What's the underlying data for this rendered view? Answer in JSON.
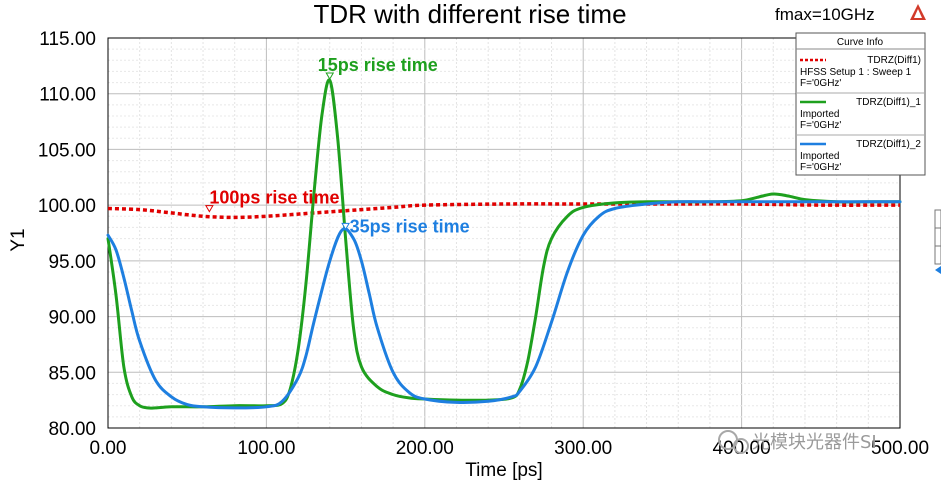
{
  "header": {
    "fmax_label": "fmax=10GHz"
  },
  "legend": {
    "title": "Curve Info",
    "entries": [
      {
        "name": "TDRZ(Diff1)",
        "lines": [
          "HFSS Setup 1 : Sweep 1",
          "F='0GHz'"
        ],
        "color": "#e00000",
        "dashed": true
      },
      {
        "name": "TDRZ(Diff1)_1",
        "lines": [
          "Imported",
          "F='0GHz'"
        ],
        "color": "#1ea01e",
        "dashed": false
      },
      {
        "name": "TDRZ(Diff1)_2",
        "lines": [
          "Imported",
          "F='0GHz'"
        ],
        "color": "#1e7fe0",
        "dashed": false
      }
    ]
  },
  "watermark": {
    "text": "光模块光器件SI"
  },
  "chart_data": {
    "type": "line",
    "title": "TDR  with different rise time",
    "xlabel": "Time [ps]",
    "ylabel": "Y1",
    "xlim": [
      0,
      500
    ],
    "ylim": [
      80,
      115
    ],
    "x_ticks": [
      0,
      100,
      200,
      300,
      400,
      500
    ],
    "x_tick_labels": [
      "0.00",
      "100.00",
      "200.00",
      "300.00",
      "400.00",
      "500.00"
    ],
    "y_ticks": [
      80,
      85,
      90,
      95,
      100,
      105,
      110,
      115
    ],
    "y_tick_labels": [
      "80.00",
      "85.00",
      "90.00",
      "95.00",
      "100.00",
      "105.00",
      "110.00",
      "115.00"
    ],
    "grid": true,
    "legend_position": "top-right",
    "series": [
      {
        "name": "TDRZ(Diff1)",
        "color": "#e00000",
        "dashed": true,
        "x": [
          0,
          20,
          40,
          60,
          80,
          100,
          120,
          140,
          160,
          180,
          200,
          250,
          300,
          350,
          400,
          450,
          500
        ],
        "y": [
          99.7,
          99.6,
          99.3,
          99.0,
          98.9,
          99.0,
          99.2,
          99.4,
          99.6,
          99.8,
          100.0,
          100.1,
          100.1,
          100.1,
          100.1,
          100.0,
          100.0
        ]
      },
      {
        "name": "TDRZ(Diff1)_1",
        "color": "#1ea01e",
        "dashed": false,
        "x": [
          0,
          5,
          10,
          15,
          20,
          25,
          30,
          40,
          60,
          80,
          100,
          110,
          115,
          120,
          125,
          130,
          135,
          140,
          145,
          150,
          155,
          160,
          170,
          180,
          190,
          200,
          220,
          240,
          255,
          260,
          265,
          270,
          275,
          280,
          290,
          300,
          320,
          340,
          360,
          380,
          400,
          410,
          420,
          430,
          440,
          460,
          480,
          500
        ],
        "y": [
          97.0,
          92.0,
          85.5,
          82.8,
          82.0,
          81.8,
          81.8,
          81.9,
          81.9,
          82.0,
          82.0,
          82.2,
          83.5,
          87.0,
          93.0,
          101.0,
          108.0,
          111.2,
          106.0,
          97.0,
          89.0,
          85.5,
          83.7,
          83.0,
          82.7,
          82.6,
          82.5,
          82.5,
          82.7,
          83.5,
          86.0,
          90.0,
          94.5,
          97.0,
          99.0,
          99.8,
          100.2,
          100.3,
          100.3,
          100.3,
          100.4,
          100.7,
          101.0,
          100.8,
          100.5,
          100.3,
          100.3,
          100.3
        ]
      },
      {
        "name": "TDRZ(Diff1)_2",
        "color": "#1e7fe0",
        "dashed": false,
        "x": [
          0,
          5,
          10,
          15,
          20,
          30,
          40,
          50,
          60,
          80,
          100,
          110,
          120,
          125,
          130,
          140,
          148,
          155,
          160,
          165,
          170,
          180,
          190,
          200,
          220,
          240,
          255,
          260,
          270,
          280,
          290,
          300,
          310,
          320,
          340,
          360,
          380,
          400,
          420,
          440,
          460,
          480,
          500
        ],
        "y": [
          97.3,
          96.0,
          93.5,
          90.5,
          87.8,
          84.3,
          82.8,
          82.1,
          81.9,
          81.8,
          81.9,
          82.4,
          84.5,
          86.5,
          89.5,
          95.0,
          97.8,
          97.0,
          95.0,
          92.0,
          89.0,
          85.0,
          83.2,
          82.6,
          82.3,
          82.4,
          82.8,
          83.3,
          85.5,
          89.5,
          94.0,
          97.3,
          99.0,
          99.7,
          100.1,
          100.3,
          100.3,
          100.3,
          100.3,
          100.3,
          100.3,
          100.3,
          100.3
        ]
      }
    ],
    "annotations": [
      {
        "text": "15ps rise time",
        "color": "#1ea01e",
        "x": 140,
        "y": 111.5
      },
      {
        "text": "100ps rise time",
        "color": "#e00000",
        "x": 64,
        "y": 99.6
      },
      {
        "text": "35ps rise time",
        "color": "#1e7fe0",
        "x": 150,
        "y": 98.0
      }
    ]
  }
}
